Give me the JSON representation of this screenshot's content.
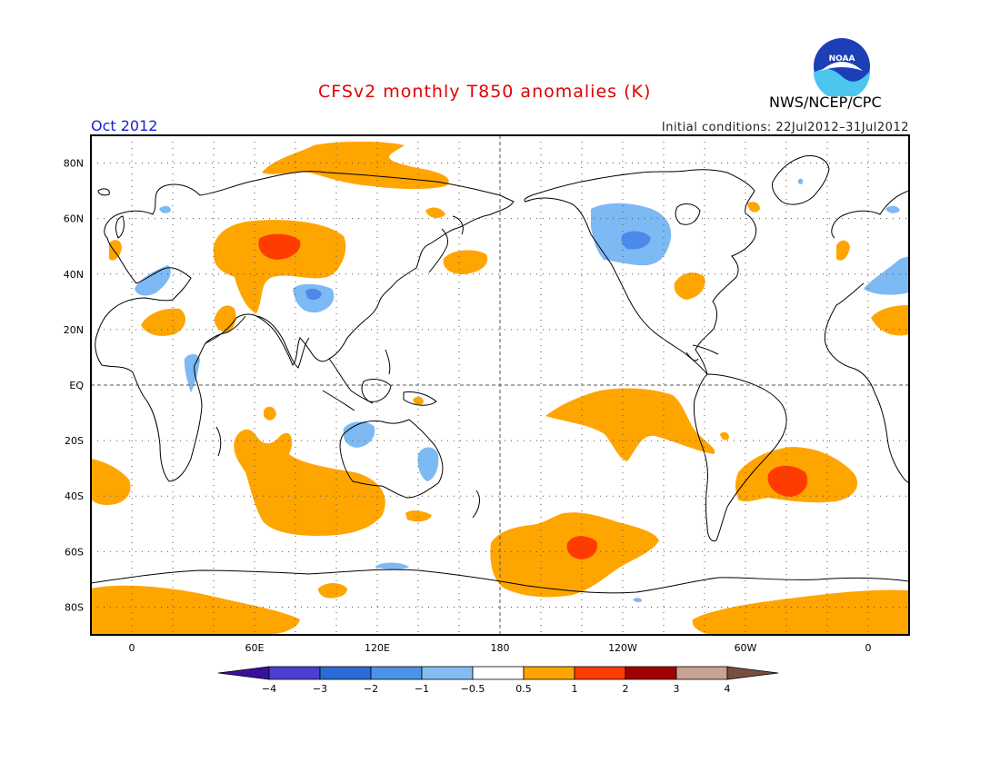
{
  "header": {
    "title": "CFSv2 monthly T850 anomalies (K)",
    "agency": "NWS/NCEP/CPC",
    "logo_text": "NOAA",
    "month": "Oct 2012",
    "initial_conditions": "Initial conditions: 22Jul2012–31Jul2012"
  },
  "map": {
    "projection": "equirectangular",
    "center_longitude": 180,
    "lon_range": [
      -20,
      380
    ],
    "lat_range": [
      -90,
      90
    ],
    "lat_labels": [
      {
        "lat": 80,
        "text": "80N"
      },
      {
        "lat": 60,
        "text": "60N"
      },
      {
        "lat": 40,
        "text": "40N"
      },
      {
        "lat": 20,
        "text": "20N"
      },
      {
        "lat": 0,
        "text": "EQ"
      },
      {
        "lat": -20,
        "text": "20S"
      },
      {
        "lat": -40,
        "text": "40S"
      },
      {
        "lat": -60,
        "text": "60S"
      },
      {
        "lat": -80,
        "text": "80S"
      }
    ],
    "lon_labels": [
      {
        "lon": 0,
        "text": "0"
      },
      {
        "lon": 60,
        "text": "60E"
      },
      {
        "lon": 120,
        "text": "120E"
      },
      {
        "lon": 180,
        "text": "180"
      },
      {
        "lon": 240,
        "text": "120W"
      },
      {
        "lon": 300,
        "text": "60W"
      },
      {
        "lon": 360,
        "text": "0"
      }
    ],
    "grid": "dotted 20-degree graticule",
    "colors": {
      "warm_0_5_1": "#ffa500",
      "warm_1_2": "#ff3c00",
      "cool_m1_m0_5": "#7db9f3",
      "cool_m2_m1": "#4b8ae8"
    }
  },
  "colorbar": {
    "labels": [
      "−4",
      "−3",
      "−2",
      "−1",
      "−0.5",
      "0.5",
      "1",
      "2",
      "3",
      "4"
    ],
    "colors": [
      "#3b0f9e",
      "#4b3fcf",
      "#2a6cd6",
      "#4b92ea",
      "#84bdf3",
      "#ffffff",
      "#ffa500",
      "#ff3c00",
      "#a00000",
      "#c8a292",
      "#7a4e3e"
    ]
  }
}
